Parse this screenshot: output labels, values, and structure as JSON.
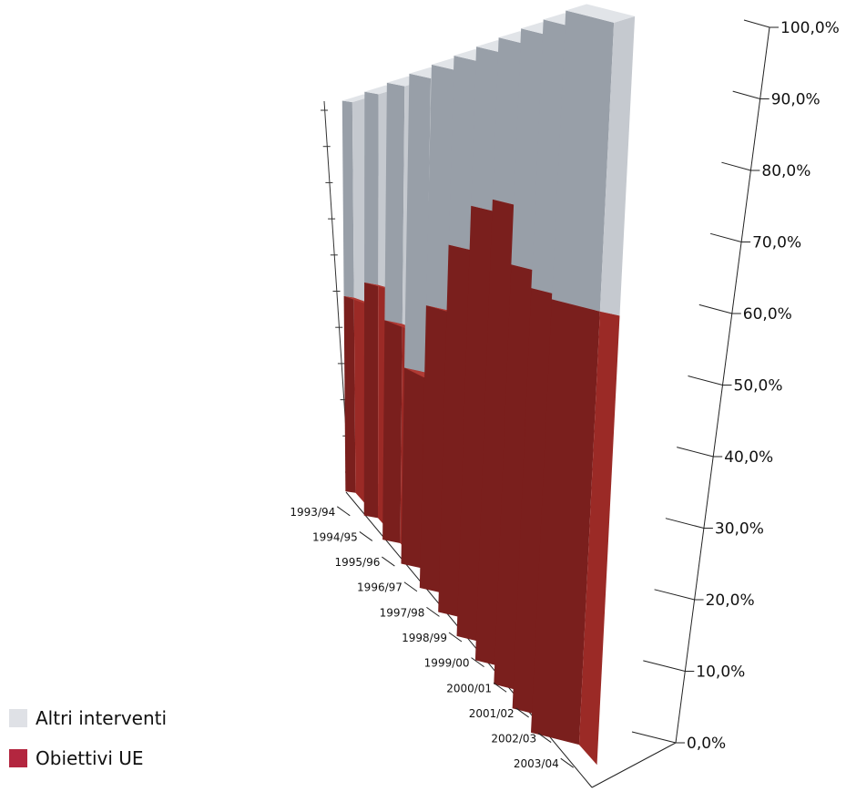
{
  "chart_data": {
    "type": "bar",
    "stacked": true,
    "percent_stacked": true,
    "three_d": true,
    "categories": [
      "1993/94",
      "1994/95",
      "1995/96",
      "1996/97",
      "1997/98",
      "1998/99",
      "1999/00",
      "2000/01",
      "2001/02",
      "2002/03",
      "2003/04"
    ],
    "series": [
      {
        "name": "Obiettivi UE",
        "color": "#9b2a26",
        "values": [
          50,
          55,
          48,
          40,
          54,
          66,
          73,
          74,
          64,
          61,
          60
        ]
      },
      {
        "name": "Altri interventi",
        "color": "#c5c9cf",
        "values": [
          50,
          45,
          52,
          60,
          46,
          34,
          27,
          26,
          36,
          39,
          40
        ]
      }
    ],
    "y_ticks": [
      "0,0%",
      "10,0%",
      "20,0%",
      "30,0%",
      "40,0%",
      "50,0%",
      "60,0%",
      "70,0%",
      "80,0%",
      "90,0%",
      "100,0%"
    ],
    "ylim": [
      0,
      100
    ],
    "legend_position": "bottom-left"
  },
  "legend": [
    {
      "label": "Altri interventi",
      "color": "#dfe1e6"
    },
    {
      "label": "Obiettivi UE",
      "color": "#b3263f"
    }
  ]
}
